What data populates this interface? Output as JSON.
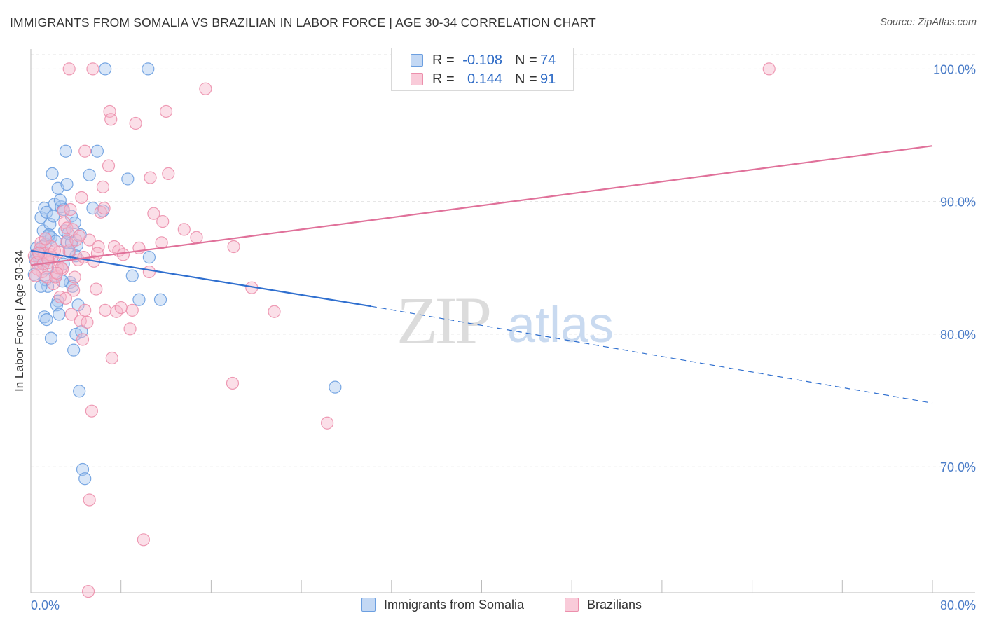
{
  "title": "IMMIGRANTS FROM SOMALIA VS BRAZILIAN IN LABOR FORCE | AGE 30-34 CORRELATION CHART",
  "source": "Source: ZipAtlas.com",
  "watermark": {
    "zip": "ZIP",
    "atlas": "atlas"
  },
  "legend_top": {
    "rows": [
      {
        "r_label": "R =",
        "r_value": "-0.108",
        "n_label": "N =",
        "n_value": "74"
      },
      {
        "r_label": "R =",
        "r_value": "0.144",
        "n_label": "N =",
        "n_value": "91"
      }
    ]
  },
  "legend_bottom": {
    "items": [
      {
        "label": "Immigrants from Somalia"
      },
      {
        "label": "Brazilians"
      }
    ]
  },
  "colors": {
    "somalia_fill": "#a9c8f0",
    "somalia_stroke": "#6c9fe0",
    "somalia_line": "#2f6fcf",
    "brazil_fill": "#f6b9cc",
    "brazil_stroke": "#ec8fac",
    "brazil_line": "#e0719a",
    "axis_label": "#4a7cc8",
    "grid": "#e3e3e3"
  },
  "chart_data": {
    "type": "scatter",
    "ylabel": "In Labor Force | Age 30-34",
    "xlim": [
      0,
      80
    ],
    "ylim": [
      60.5,
      101.5
    ],
    "x_tick_labels": [
      "0.0%",
      "80.0%"
    ],
    "y_ticks": [
      70,
      80,
      90,
      100
    ],
    "y_tick_labels": [
      "70.0%",
      "80.0%",
      "90.0%",
      "100.0%"
    ],
    "grid": true,
    "series": [
      {
        "name": "Immigrants from Somalia",
        "r": -0.108,
        "n": 74,
        "trend": {
          "x0": 0,
          "y0": 86.3,
          "x1": 30.2,
          "y1": 82.1,
          "dash_to_x": 80,
          "dash_to_y": 74.8
        },
        "points": [
          [
            0.3,
            84.5
          ],
          [
            0.5,
            86.5
          ],
          [
            0.8,
            85.3
          ],
          [
            0.5,
            86.0
          ],
          [
            0.9,
            88.8
          ],
          [
            1.1,
            87.8
          ],
          [
            1.2,
            89.5
          ],
          [
            1.4,
            89.2
          ],
          [
            1.6,
            87.4
          ],
          [
            1.3,
            86.8
          ],
          [
            1.0,
            85.4
          ],
          [
            1.5,
            83.6
          ],
          [
            1.2,
            81.3
          ],
          [
            1.4,
            81.1
          ],
          [
            1.7,
            88.3
          ],
          [
            1.8,
            87.3
          ],
          [
            1.9,
            92.1
          ],
          [
            2.1,
            89.8
          ],
          [
            2.0,
            88.9
          ],
          [
            1.8,
            79.7
          ],
          [
            1.1,
            86.0
          ],
          [
            1.9,
            85.8
          ],
          [
            2.2,
            84.4
          ],
          [
            2.4,
            82.5
          ],
          [
            2.3,
            82.2
          ],
          [
            2.5,
            81.5
          ],
          [
            2.4,
            91.0
          ],
          [
            2.7,
            89.6
          ],
          [
            2.9,
            89.4
          ],
          [
            3.0,
            87.8
          ],
          [
            3.2,
            86.9
          ],
          [
            3.4,
            86.2
          ],
          [
            3.1,
            93.8
          ],
          [
            3.2,
            91.3
          ],
          [
            3.6,
            88.9
          ],
          [
            3.9,
            88.4
          ],
          [
            3.5,
            83.9
          ],
          [
            3.7,
            83.6
          ],
          [
            3.8,
            78.8
          ],
          [
            4.1,
            86.7
          ],
          [
            4.2,
            82.2
          ],
          [
            4.0,
            80.0
          ],
          [
            4.5,
            80.2
          ],
          [
            4.3,
            75.7
          ],
          [
            4.6,
            69.8
          ],
          [
            4.8,
            69.1
          ],
          [
            5.2,
            92.0
          ],
          [
            5.5,
            89.5
          ],
          [
            5.9,
            93.8
          ],
          [
            6.4,
            89.3
          ],
          [
            6.6,
            100.0
          ],
          [
            8.6,
            91.7
          ],
          [
            9.0,
            84.4
          ],
          [
            9.6,
            82.6
          ],
          [
            10.4,
            100.0
          ],
          [
            10.5,
            85.8
          ],
          [
            11.5,
            82.6
          ],
          [
            27.0,
            76.0
          ],
          [
            2.6,
            90.1
          ],
          [
            0.7,
            86.2
          ],
          [
            1.6,
            87.5
          ],
          [
            2.8,
            84.0
          ],
          [
            3.3,
            87.6
          ],
          [
            0.6,
            85.9
          ],
          [
            1.0,
            86.6
          ],
          [
            4.0,
            85.9
          ],
          [
            2.2,
            87.0
          ],
          [
            0.4,
            85.6
          ],
          [
            3.6,
            86.9
          ],
          [
            2.9,
            85.3
          ],
          [
            1.3,
            84.1
          ],
          [
            0.9,
            83.6
          ],
          [
            4.4,
            87.5
          ],
          [
            1.5,
            85.0
          ]
        ]
      },
      {
        "name": "Brazilians",
        "r": 0.144,
        "n": 91,
        "trend": {
          "x0": 0,
          "y0": 85.2,
          "x1": 80,
          "y1": 94.2
        },
        "points": [
          [
            0.3,
            85.9
          ],
          [
            0.5,
            85.4
          ],
          [
            0.8,
            86.4
          ],
          [
            1.0,
            84.7
          ],
          [
            1.2,
            86.1
          ],
          [
            1.4,
            84.3
          ],
          [
            1.6,
            85.4
          ],
          [
            1.8,
            86.6
          ],
          [
            2.0,
            83.8
          ],
          [
            2.2,
            84.3
          ],
          [
            2.4,
            85.0
          ],
          [
            2.6,
            82.8
          ],
          [
            2.8,
            84.9
          ],
          [
            3.0,
            88.4
          ],
          [
            3.2,
            87.0
          ],
          [
            3.4,
            86.3
          ],
          [
            3.6,
            81.5
          ],
          [
            3.8,
            83.3
          ],
          [
            4.0,
            87.1
          ],
          [
            4.2,
            85.6
          ],
          [
            4.4,
            81.0
          ],
          [
            4.6,
            79.6
          ],
          [
            4.8,
            81.8
          ],
          [
            5.0,
            80.9
          ],
          [
            5.2,
            87.1
          ],
          [
            5.4,
            74.2
          ],
          [
            5.6,
            85.5
          ],
          [
            5.8,
            83.4
          ],
          [
            6.0,
            86.6
          ],
          [
            6.2,
            89.2
          ],
          [
            6.4,
            91.1
          ],
          [
            6.6,
            81.8
          ],
          [
            6.9,
            92.7
          ],
          [
            7.0,
            96.8
          ],
          [
            7.1,
            96.2
          ],
          [
            7.2,
            78.2
          ],
          [
            7.4,
            86.6
          ],
          [
            7.6,
            81.7
          ],
          [
            7.8,
            86.3
          ],
          [
            8.2,
            86.0
          ],
          [
            8.8,
            80.4
          ],
          [
            9.0,
            81.8
          ],
          [
            9.3,
            95.9
          ],
          [
            9.6,
            86.5
          ],
          [
            10.5,
            84.7
          ],
          [
            10.6,
            91.8
          ],
          [
            10.9,
            89.1
          ],
          [
            11.6,
            86.9
          ],
          [
            11.7,
            88.5
          ],
          [
            12.0,
            96.8
          ],
          [
            12.2,
            92.1
          ],
          [
            13.6,
            87.9
          ],
          [
            14.7,
            87.3
          ],
          [
            15.5,
            98.5
          ],
          [
            17.9,
            76.3
          ],
          [
            18.0,
            86.6
          ],
          [
            19.6,
            83.5
          ],
          [
            21.6,
            81.7
          ],
          [
            26.3,
            73.3
          ],
          [
            65.5,
            100.0
          ],
          [
            3.4,
            100.0
          ],
          [
            5.5,
            100.0
          ],
          [
            4.8,
            93.8
          ],
          [
            5.2,
            67.5
          ],
          [
            10.0,
            64.5
          ],
          [
            5.1,
            60.6
          ],
          [
            4.5,
            90.3
          ],
          [
            3.2,
            88.0
          ],
          [
            2.5,
            86.2
          ],
          [
            1.9,
            85.8
          ],
          [
            1.1,
            85.3
          ],
          [
            0.6,
            84.9
          ],
          [
            0.9,
            86.9
          ],
          [
            1.7,
            86.0
          ],
          [
            2.9,
            89.3
          ],
          [
            3.7,
            87.9
          ],
          [
            4.3,
            87.4
          ],
          [
            0.4,
            84.4
          ],
          [
            1.3,
            87.2
          ],
          [
            2.1,
            86.3
          ],
          [
            2.7,
            85.0
          ],
          [
            3.9,
            84.3
          ],
          [
            4.7,
            85.8
          ],
          [
            6.5,
            89.5
          ],
          [
            8.0,
            82.0
          ],
          [
            3.5,
            89.4
          ],
          [
            2.3,
            84.6
          ],
          [
            1.5,
            85.7
          ],
          [
            0.7,
            86.1
          ],
          [
            3.1,
            82.7
          ],
          [
            5.9,
            86.1
          ]
        ]
      }
    ]
  }
}
